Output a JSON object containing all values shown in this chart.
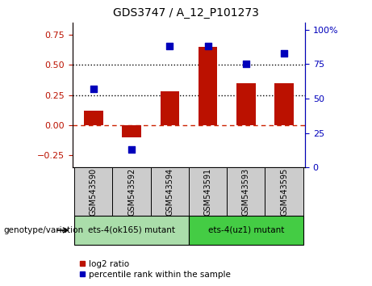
{
  "title": "GDS3747 / A_12_P101273",
  "samples": [
    "GSM543590",
    "GSM543592",
    "GSM543594",
    "GSM543591",
    "GSM543593",
    "GSM543595"
  ],
  "log2_ratio": [
    0.12,
    -0.1,
    0.28,
    0.65,
    0.35,
    0.35
  ],
  "percentile_rank": [
    57,
    13,
    88,
    88,
    75,
    83
  ],
  "bar_color": "#bb1100",
  "dot_color": "#0000bb",
  "left_ylim": [
    -0.35,
    0.85
  ],
  "right_ylim": [
    0,
    105
  ],
  "left_yticks": [
    -0.25,
    0.0,
    0.25,
    0.5,
    0.75
  ],
  "right_yticks": [
    0,
    25,
    50,
    75,
    100
  ],
  "zero_line_color": "#cc2200",
  "dotted_line_color": "#000000",
  "group1_label": "ets-4(ok165) mutant",
  "group2_label": "ets-4(uz1) mutant",
  "group1_color": "#aaddaa",
  "group2_color": "#44cc44",
  "xlabel_label": "genotype/variation",
  "legend_log2": "log2 ratio",
  "legend_pct": "percentile rank within the sample",
  "bar_width": 0.5,
  "dot_size": 40,
  "tick_bg_color": "#cccccc",
  "bg_white": "#ffffff",
  "plot_bg": "#ffffff",
  "spine_color": "#000000"
}
